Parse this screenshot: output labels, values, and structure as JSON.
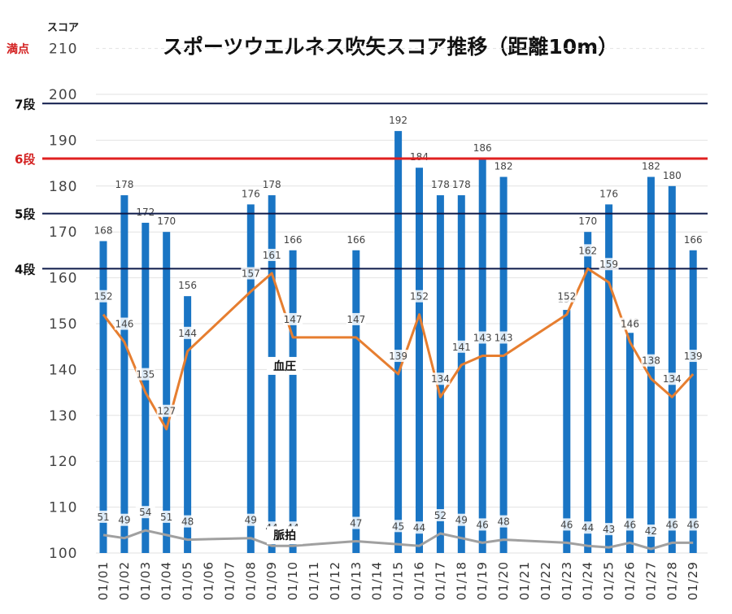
{
  "chart_data": {
    "type": "bar",
    "title": "スポーツウエルネス吹矢スコア推移（距離10m）",
    "ylabel": "スコア",
    "ylim": [
      100,
      210
    ],
    "yticks": [
      100,
      110,
      120,
      130,
      140,
      150,
      160,
      170,
      180,
      190,
      200,
      210
    ],
    "top_label": "満点",
    "grid": true,
    "categories": [
      "01/01",
      "01/02",
      "01/03",
      "01/04",
      "01/05",
      "01/06",
      "01/07",
      "01/08",
      "01/09",
      "01/10",
      "01/11",
      "01/12",
      "01/13",
      "01/14",
      "01/15",
      "01/16",
      "01/17",
      "01/18",
      "01/19",
      "01/20",
      "01/21",
      "01/22",
      "01/23",
      "01/24",
      "01/25",
      "01/26",
      "01/27",
      "01/28",
      "01/29"
    ],
    "series": [
      {
        "type": "bar",
        "color": "#1a75c4",
        "values": [
          168,
          178,
          172,
          170,
          156,
          null,
          null,
          176,
          178,
          166,
          null,
          null,
          166,
          null,
          192,
          184,
          178,
          178,
          186,
          182,
          null,
          null,
          153,
          170,
          176,
          148,
          182,
          180,
          166
        ]
      },
      {
        "type": "line",
        "name": "血圧",
        "color": "#e67e30",
        "values": [
          152,
          146,
          135,
          127,
          144,
          null,
          null,
          157,
          161,
          147,
          null,
          null,
          147,
          null,
          139,
          152,
          134,
          141,
          143,
          143,
          null,
          null,
          152,
          162,
          159,
          146,
          138,
          134,
          139
        ]
      },
      {
        "type": "line",
        "name": "脈拍",
        "color": "#a0a0a0",
        "values": [
          51,
          49,
          54,
          51,
          48,
          null,
          null,
          49,
          44,
          44,
          null,
          null,
          47,
          null,
          45,
          44,
          52,
          49,
          46,
          48,
          null,
          null,
          46,
          44,
          43,
          46,
          42,
          46,
          46
        ]
      }
    ],
    "reference_lines": [
      {
        "label": "7段",
        "value": 198,
        "color": "#0d1a4a"
      },
      {
        "label": "6段",
        "value": 186,
        "color": "#e02020"
      },
      {
        "label": "5段",
        "value": 174,
        "color": "#0d1a4a"
      },
      {
        "label": "4段",
        "value": 162,
        "color": "#0d1a4a"
      }
    ]
  }
}
